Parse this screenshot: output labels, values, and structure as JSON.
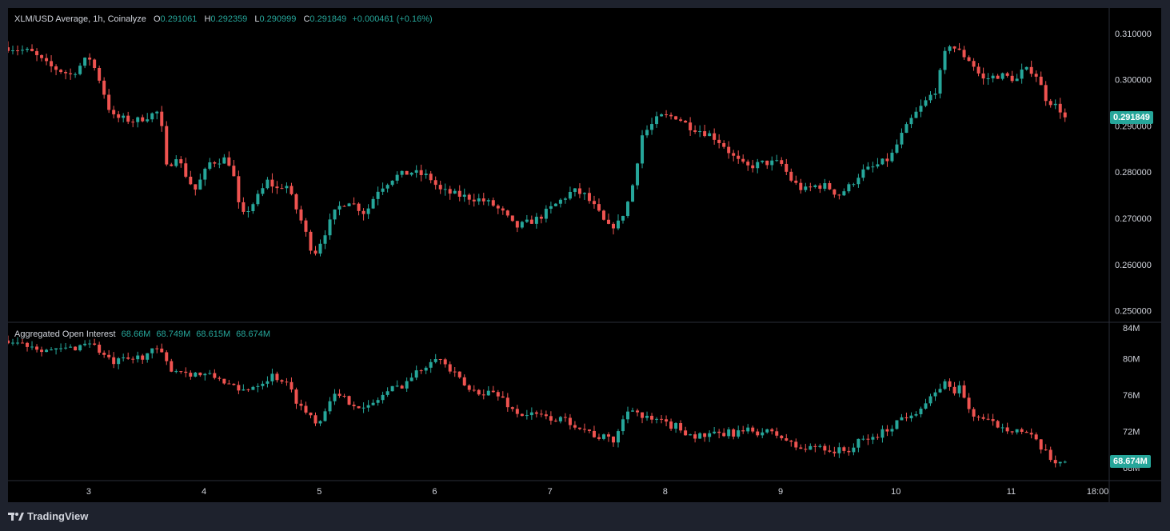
{
  "main_legend": {
    "symbol": "XLM/USD Average, 1h, Coinalyze",
    "open_label": "O",
    "open": "0.291061",
    "high_label": "H",
    "high": "0.292359",
    "low_label": "L",
    "low": "0.290999",
    "close_label": "C",
    "close": "0.291849",
    "change": "+0.000461 (+0.16%)"
  },
  "oi_legend": {
    "title": "Aggregated Open Interest",
    "o": "68.66M",
    "h": "68.749M",
    "l": "68.615M",
    "c": "68.674M"
  },
  "last_price_tag": "0.291849",
  "last_oi_tag": "68.674M",
  "logo_text": "TradingView",
  "colors": {
    "up": "#26a69a",
    "down": "#ef5350",
    "background": "#000000",
    "frame": "#1e222d"
  },
  "chart_data": [
    {
      "type": "candlestick",
      "title": "XLM/USD Average, 1h, Coinalyze",
      "y_ticks": [
        "0.310000",
        "0.300000",
        "0.290000",
        "0.280000",
        "0.270000",
        "0.260000",
        "0.250000"
      ],
      "ylim": [
        0.2475,
        0.3155
      ],
      "x_ticks": [
        "3",
        "4",
        "5",
        "6",
        "7",
        "8",
        "9",
        "10",
        "11",
        "18:00"
      ],
      "x_tick_positions_days": [
        3,
        4,
        5,
        6,
        7,
        8,
        9,
        10,
        11,
        11.75
      ],
      "xlim_days": [
        2.3,
        11.85
      ],
      "close_path": [
        [
          2.3,
          0.307
        ],
        [
          2.5,
          0.306
        ],
        [
          2.65,
          0.303
        ],
        [
          2.85,
          0.301
        ],
        [
          3.0,
          0.305
        ],
        [
          3.08,
          0.301
        ],
        [
          3.2,
          0.292
        ],
        [
          3.4,
          0.291
        ],
        [
          3.6,
          0.293
        ],
        [
          3.62,
          0.292
        ],
        [
          3.68,
          0.28
        ],
        [
          3.75,
          0.284
        ],
        [
          3.85,
          0.279
        ],
        [
          3.92,
          0.276
        ],
        [
          4.05,
          0.282
        ],
        [
          4.2,
          0.283
        ],
        [
          4.25,
          0.28
        ],
        [
          4.32,
          0.27
        ],
        [
          4.45,
          0.274
        ],
        [
          4.55,
          0.278
        ],
        [
          4.65,
          0.276
        ],
        [
          4.7,
          0.278
        ],
        [
          4.85,
          0.269
        ],
        [
          4.95,
          0.262
        ],
        [
          5.05,
          0.267
        ],
        [
          5.15,
          0.272
        ],
        [
          5.25,
          0.274
        ],
        [
          5.3,
          0.273
        ],
        [
          5.4,
          0.271
        ],
        [
          5.5,
          0.276
        ],
        [
          5.65,
          0.279
        ],
        [
          5.8,
          0.28
        ],
        [
          5.95,
          0.279
        ],
        [
          6.05,
          0.276
        ],
        [
          6.2,
          0.275
        ],
        [
          6.4,
          0.274
        ],
        [
          6.5,
          0.273
        ],
        [
          6.6,
          0.271
        ],
        [
          6.7,
          0.268
        ],
        [
          6.8,
          0.269
        ],
        [
          6.9,
          0.27
        ],
        [
          7.0,
          0.272
        ],
        [
          7.2,
          0.276
        ],
        [
          7.3,
          0.275
        ],
        [
          7.4,
          0.272
        ],
        [
          7.5,
          0.268
        ],
        [
          7.6,
          0.269
        ],
        [
          7.7,
          0.275
        ],
        [
          7.8,
          0.288
        ],
        [
          7.95,
          0.292
        ],
        [
          8.1,
          0.292
        ],
        [
          8.2,
          0.29
        ],
        [
          8.4,
          0.288
        ],
        [
          8.5,
          0.286
        ],
        [
          8.6,
          0.283
        ],
        [
          8.7,
          0.281
        ],
        [
          8.85,
          0.282
        ],
        [
          9.0,
          0.282
        ],
        [
          9.1,
          0.278
        ],
        [
          9.2,
          0.276
        ],
        [
          9.3,
          0.277
        ],
        [
          9.4,
          0.277
        ],
        [
          9.5,
          0.275
        ],
        [
          9.6,
          0.277
        ],
        [
          9.7,
          0.28
        ],
        [
          9.8,
          0.281
        ],
        [
          9.95,
          0.283
        ],
        [
          10.05,
          0.288
        ],
        [
          10.15,
          0.292
        ],
        [
          10.25,
          0.295
        ],
        [
          10.35,
          0.298
        ],
        [
          10.45,
          0.308
        ],
        [
          10.55,
          0.306
        ],
        [
          10.65,
          0.304
        ],
        [
          10.75,
          0.3
        ],
        [
          10.9,
          0.301
        ],
        [
          11.05,
          0.3
        ],
        [
          11.1,
          0.302
        ],
        [
          11.2,
          0.302
        ],
        [
          11.3,
          0.296
        ],
        [
          11.4,
          0.294
        ],
        [
          11.5,
          0.2918
        ]
      ],
      "last": 0.291849
    },
    {
      "type": "candlestick",
      "title": "Aggregated Open Interest",
      "y_ticks": [
        "84M",
        "80M",
        "76M",
        "72M",
        "68M"
      ],
      "ylim_millions": [
        66.6,
        84.0
      ],
      "close_path": [
        [
          2.3,
          82.0
        ],
        [
          2.5,
          81.5
        ],
        [
          2.7,
          80.8
        ],
        [
          2.9,
          81.3
        ],
        [
          3.0,
          82.0
        ],
        [
          3.2,
          79.5
        ],
        [
          3.4,
          80.0
        ],
        [
          3.6,
          81.0
        ],
        [
          3.7,
          79.0
        ],
        [
          3.85,
          78.5
        ],
        [
          4.0,
          78.2
        ],
        [
          4.15,
          77.8
        ],
        [
          4.3,
          76.3
        ],
        [
          4.5,
          77.5
        ],
        [
          4.6,
          78.2
        ],
        [
          4.7,
          77.5
        ],
        [
          4.85,
          74.5
        ],
        [
          5.0,
          73.0
        ],
        [
          5.1,
          76.0
        ],
        [
          5.3,
          75.2
        ],
        [
          5.4,
          74.3
        ],
        [
          5.5,
          75.5
        ],
        [
          5.6,
          76.5
        ],
        [
          5.7,
          77.0
        ],
        [
          5.9,
          79.0
        ],
        [
          6.0,
          80.5
        ],
        [
          6.15,
          78.5
        ],
        [
          6.3,
          76.5
        ],
        [
          6.5,
          76.3
        ],
        [
          6.6,
          75.5
        ],
        [
          6.7,
          74.0
        ],
        [
          6.85,
          73.8
        ],
        [
          7.0,
          73.5
        ],
        [
          7.2,
          73.0
        ],
        [
          7.4,
          71.5
        ],
        [
          7.55,
          71.0
        ],
        [
          7.7,
          75.0
        ],
        [
          7.8,
          73.5
        ],
        [
          7.95,
          73.0
        ],
        [
          8.1,
          72.5
        ],
        [
          8.25,
          71.5
        ],
        [
          8.4,
          71.5
        ],
        [
          8.55,
          71.8
        ],
        [
          8.7,
          72.0
        ],
        [
          8.85,
          72.0
        ],
        [
          9.0,
          71.5
        ],
        [
          9.1,
          70.5
        ],
        [
          9.2,
          70.0
        ],
        [
          9.35,
          70.5
        ],
        [
          9.45,
          69.8
        ],
        [
          9.6,
          70.0
        ],
        [
          9.7,
          71.0
        ],
        [
          9.8,
          71.3
        ],
        [
          9.9,
          72.0
        ],
        [
          10.05,
          73.5
        ],
        [
          10.2,
          74.5
        ],
        [
          10.35,
          76.0
        ],
        [
          10.4,
          77.5
        ],
        [
          10.5,
          76.5
        ],
        [
          10.55,
          76.8
        ],
        [
          10.65,
          74.0
        ],
        [
          10.8,
          73.0
        ],
        [
          10.95,
          72.5
        ],
        [
          11.1,
          72.0
        ],
        [
          11.2,
          71.0
        ],
        [
          11.35,
          68.8
        ],
        [
          11.5,
          68.674
        ]
      ],
      "last": 68.674
    }
  ]
}
